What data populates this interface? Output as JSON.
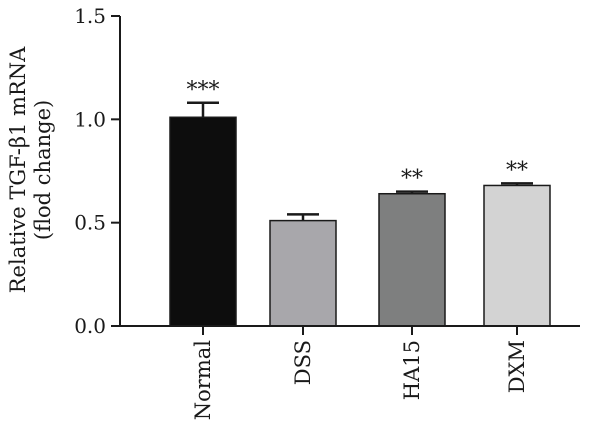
{
  "chart_data": {
    "type": "bar",
    "categories": [
      "Normal",
      "DSS",
      "HA15",
      "DXM"
    ],
    "values": [
      1.01,
      0.51,
      0.64,
      0.68
    ],
    "errors": [
      0.07,
      0.03,
      0.01,
      0.01
    ],
    "significance": [
      "***",
      "",
      "**",
      "**"
    ],
    "colors": [
      "#0d0d0d",
      "#a8a7ab",
      "#7e7f7f",
      "#d3d3d3"
    ],
    "ylabel_line1": "Relative TGF-β1 mRNA",
    "ylabel_line2": "(flod change)",
    "ylim": [
      0,
      1.5
    ],
    "yticks": [
      "0.0",
      "0.5",
      "1.0",
      "1.5"
    ],
    "ytick_values": [
      0,
      0.5,
      1.0,
      1.5
    ],
    "grid": false
  }
}
